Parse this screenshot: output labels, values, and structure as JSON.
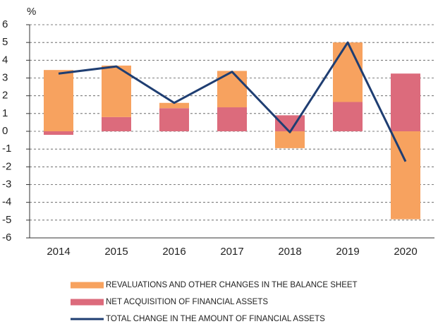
{
  "chart_data": {
    "type": "bar",
    "y_label": "%",
    "categories": [
      "2014",
      "2015",
      "2016",
      "2017",
      "2018",
      "2019",
      "2020"
    ],
    "series": [
      {
        "name": "REVALUATIONS AND OTHER CHANGES IN THE BALANCE SHEET",
        "type": "bar",
        "color": "#f7a25f",
        "values": [
          3.45,
          2.9,
          0.3,
          2.05,
          -0.95,
          3.35,
          -4.95
        ]
      },
      {
        "name": "NET ACQUISITION OF FINANCIAL ASSETS",
        "type": "bar",
        "color": "#dc6b7c",
        "values": [
          -0.2,
          0.8,
          1.3,
          1.35,
          0.9,
          1.65,
          3.25
        ]
      },
      {
        "name": "TOTAL CHANGE IN THE AMOUNT OF FINANCIAL ASSETS",
        "type": "line",
        "color": "#1f3e72",
        "values": [
          3.25,
          3.65,
          1.6,
          3.35,
          -0.05,
          5.0,
          -1.7
        ]
      }
    ],
    "ylim": [
      -6,
      6
    ],
    "yticks": [
      -6,
      -5,
      -4,
      -3,
      -2,
      -1,
      0,
      1,
      2,
      3,
      4,
      5,
      6
    ],
    "grid": true,
    "stacked": true
  }
}
